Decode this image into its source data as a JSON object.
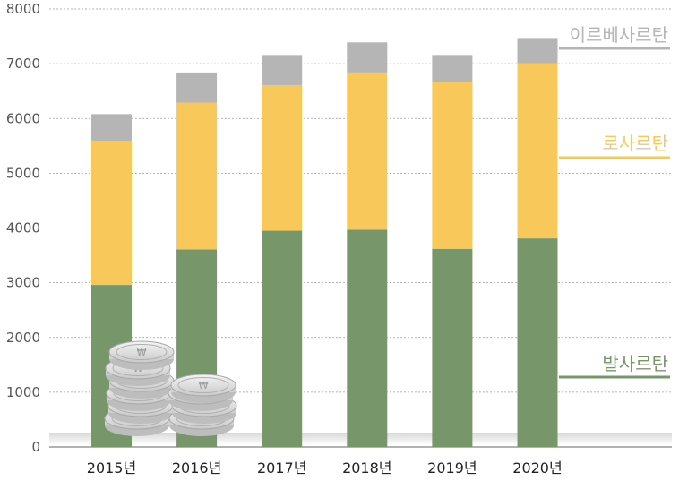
{
  "chart_data": {
    "type": "bar",
    "stacked": true,
    "categories": [
      "2015년",
      "2016년",
      "2017년",
      "2018년",
      "2019년",
      "2020년"
    ],
    "series": [
      {
        "name": "발사르탄",
        "values": [
          2960,
          3610,
          3950,
          3970,
          3620,
          3810
        ],
        "color": "#77976a"
      },
      {
        "name": "로사르탄",
        "values": [
          2630,
          2680,
          2660,
          2870,
          3040,
          3200
        ],
        "color": "#f9c85b"
      },
      {
        "name": "이르베사르탄",
        "values": [
          490,
          550,
          550,
          550,
          500,
          460
        ],
        "color": "#b5b5b5"
      }
    ],
    "ylim": [
      0,
      8000
    ],
    "yticks": [
      0,
      1000,
      2000,
      3000,
      4000,
      5000,
      6000,
      7000,
      8000
    ],
    "grid": true,
    "legend_placement": "right"
  },
  "decoration": {
    "coin_stack_icon": "won-coin-stack-icon"
  }
}
